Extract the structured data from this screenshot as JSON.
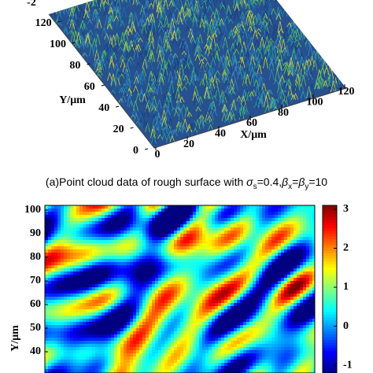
{
  "panel_a": {
    "z_ticks": [
      -2
    ],
    "y_ticks": [
      0,
      20,
      40,
      60,
      80,
      100,
      120
    ],
    "x_ticks": [
      0,
      20,
      40,
      60,
      80,
      100,
      120
    ],
    "y_label": "Y/μm",
    "x_label": "X/μm",
    "caption": [
      "(a)Point cloud data of rough surface with ",
      "σ",
      "s",
      "=0.4,",
      "β",
      "x",
      "=",
      "β",
      "y",
      "=10"
    ]
  },
  "panel_b": {
    "y_label": "Y/μm",
    "ylim": [
      31,
      102
    ],
    "yticks": [
      40,
      50,
      60,
      70,
      80,
      90,
      100
    ],
    "colorbar_lim": [
      -1.2,
      3.1
    ],
    "colorbar_ticks": [
      -1,
      0,
      1,
      2,
      3
    ]
  }
}
